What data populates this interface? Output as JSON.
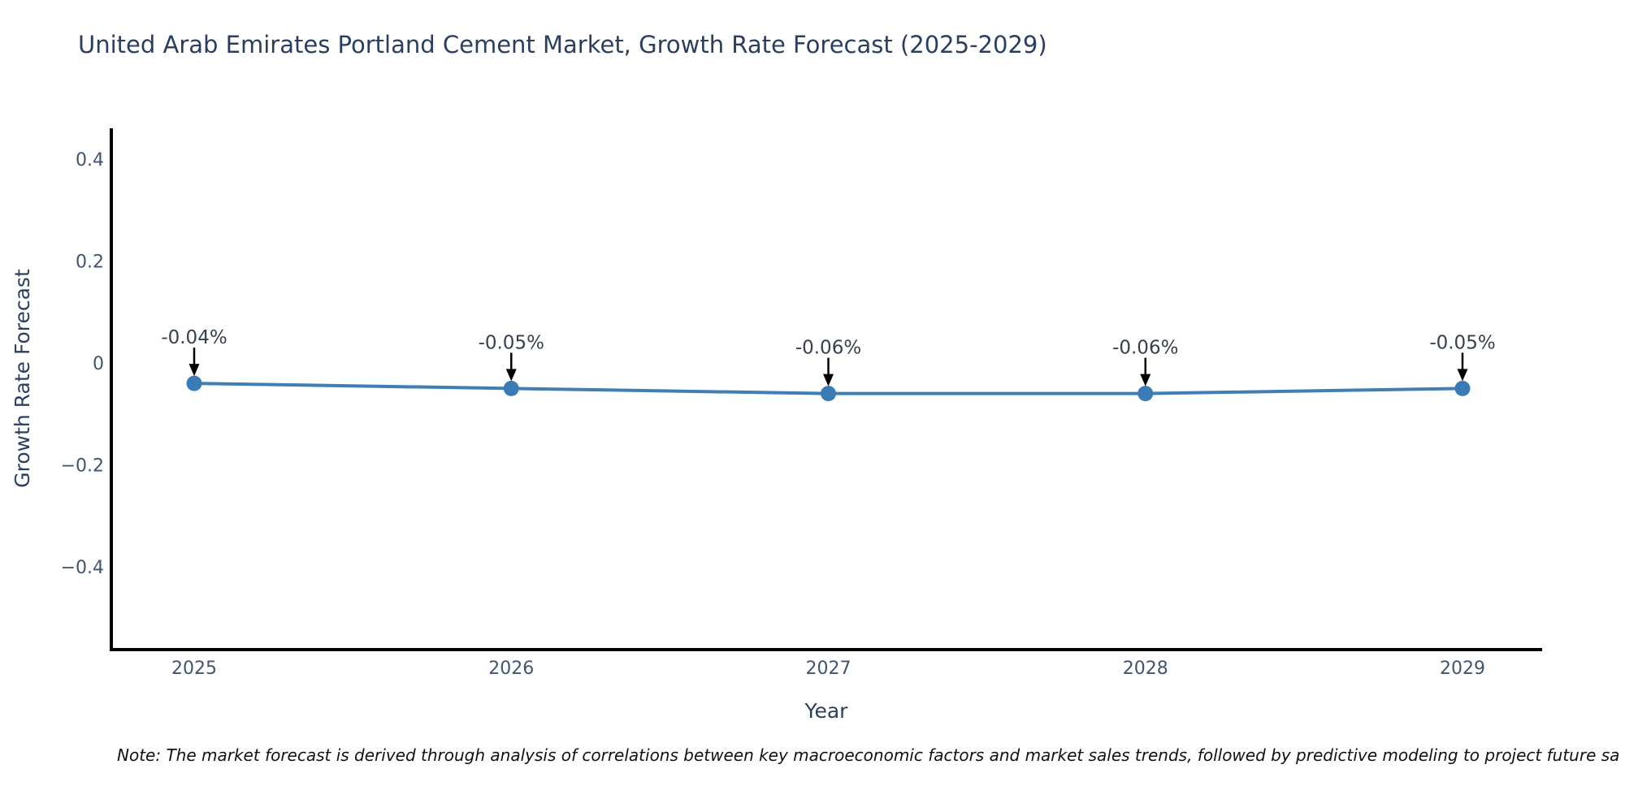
{
  "chart": {
    "colors": {
      "line": "#3f7fb5",
      "marker": "#3a7ab5",
      "axis": "#000000",
      "title_text": "#2a3f5f",
      "tick_text": "#42546e",
      "axis_title_text": "#2a3f5f",
      "annotation_text": "#36404e",
      "arrow": "#000000",
      "background": "#ffffff"
    }
  },
  "chart_data": {
    "type": "line",
    "title": "United Arab Emirates Portland Cement Market, Growth Rate Forecast (2025-2029)",
    "xlabel": "Year",
    "ylabel": "Growth Rate Forecast",
    "x": [
      2025,
      2026,
      2027,
      2028,
      2029
    ],
    "series": [
      {
        "name": "Growth Rate Forecast",
        "values": [
          -0.04,
          -0.05,
          -0.06,
          -0.06,
          -0.05
        ]
      }
    ],
    "point_labels": [
      "-0.04%",
      "-0.05%",
      "-0.06%",
      "-0.06%",
      "-0.05%"
    ],
    "yticks": [
      0.4,
      0.2,
      0,
      -0.2,
      -0.4
    ],
    "ytick_labels": [
      "0.4",
      "0.2",
      "0",
      "−0.2",
      "−0.4"
    ],
    "xtick_labels": [
      "2025",
      "2026",
      "2027",
      "2028",
      "2029"
    ],
    "ylim": [
      -0.56,
      0.46
    ],
    "grid": false,
    "legend": "none",
    "note": "Note: The market forecast is derived through analysis of correlations between key macroeconomic factors and market sales trends, followed by predictive modeling to project future sa"
  }
}
